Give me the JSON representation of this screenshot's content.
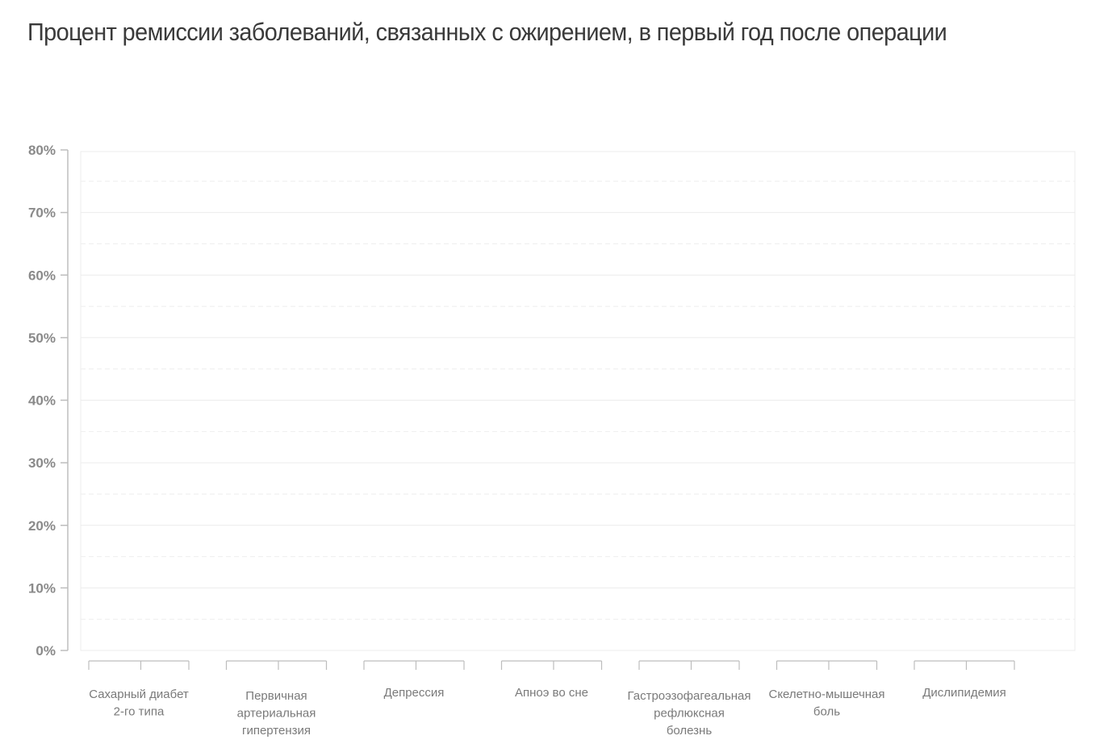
{
  "chart_data": {
    "type": "bar",
    "title": "Процент ремиссии заболеваний, связанных с ожирением, в первый год после операции",
    "xlabel": "",
    "ylabel": "",
    "ylim": [
      0,
      80
    ],
    "y_ticks": [
      "0%",
      "10%",
      "20%",
      "30%",
      "40%",
      "50%",
      "60%",
      "70%",
      "80%"
    ],
    "categories": [
      [
        "Сахарный диабет",
        "2-го типа"
      ],
      [
        "Первичная",
        "артериальная",
        "гипертензия"
      ],
      [
        "Депрессия"
      ],
      [
        "Апноэ во сне"
      ],
      [
        "Гастроэзофагеальная",
        "рефлюксная",
        "болезнь"
      ],
      [
        "Скелетно-мышечная",
        "боль"
      ],
      [
        "Дислипидемия"
      ]
    ],
    "series": [],
    "grid": true,
    "colors": {
      "axis": "#bdbdbd",
      "grid": "#ececec",
      "grid_minor": "#eeeeee",
      "tick_text": "#8a8a8a",
      "label_text": "#7a7a7a"
    }
  }
}
